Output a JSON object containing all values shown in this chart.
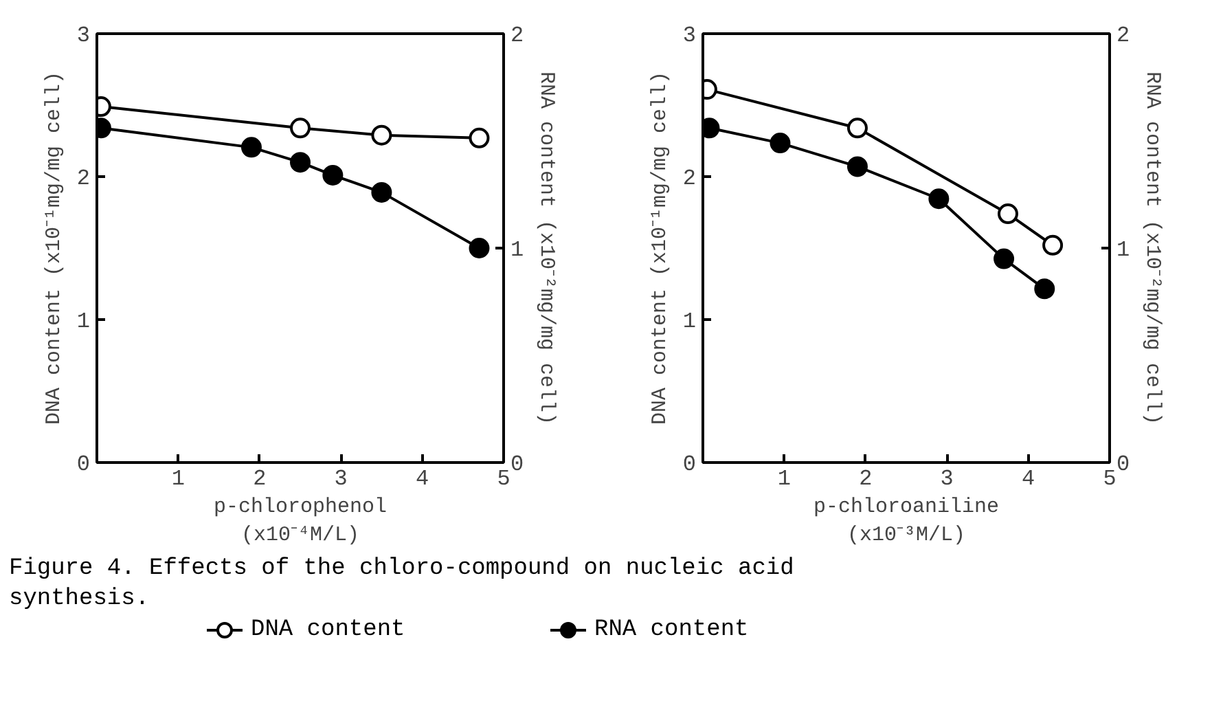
{
  "chart_data": [
    {
      "type": "line",
      "xlabel": "p-chlorophenol\n(x10⁻⁴M/L)",
      "ylabel": "DNA content (x10⁻¹mg/mg cell)",
      "y2label": "RNA content (x10⁻²mg/mg cell)",
      "xlim": [
        0,
        5
      ],
      "xticks": [
        1,
        2,
        3,
        4,
        5
      ],
      "ylim": [
        0,
        3
      ],
      "yticks": [
        0,
        1,
        2,
        3
      ],
      "y2lim": [
        0,
        2
      ],
      "y2ticks": [
        0,
        1,
        2
      ],
      "grid": false,
      "legend": "bottom",
      "marker": "circle",
      "line_style": "solid",
      "annotations": [
        "Figure 4.  Effects of the chloro-compound on nucleic acid\n            synthesis."
      ],
      "series": [
        {
          "name": "DNA content",
          "color": "#000000",
          "x": [
            0.05,
            2.5,
            3.5,
            4.7
          ],
          "values": [
            2.49,
            2.34,
            2.29,
            2.27
          ]
        },
        {
          "name": "RNA content",
          "color": "#000000",
          "axis": "y2",
          "x": [
            0.05,
            1.9,
            2.5,
            2.9,
            3.5,
            4.7
          ],
          "values": [
            1.56,
            1.47,
            1.4,
            1.34,
            1.26,
            1.0
          ]
        }
      ]
    },
    {
      "type": "line",
      "xlabel": "p-chloroaniline\n(x10⁻³M/L)",
      "ylabel": "DNA content (x10⁻¹mg/mg cell)",
      "y2label": "RNA content (x10⁻²mg/mg cell)",
      "xlim": [
        0,
        5
      ],
      "xticks": [
        1,
        2,
        3,
        4,
        5
      ],
      "ylim": [
        0,
        3
      ],
      "yticks": [
        0,
        1,
        2,
        3
      ],
      "y2lim": [
        0,
        2
      ],
      "y2ticks": [
        0,
        1,
        2
      ],
      "grid": false,
      "marker": "circle",
      "line_style": "solid",
      "series": [
        {
          "color": "#000000",
          "x": [
            0.05,
            1.9,
            3.75,
            4.3
          ],
          "values": [
            2.61,
            2.34,
            1.74,
            1.52
          ]
        },
        {
          "color": "#000000",
          "axis": "y2",
          "x": [
            0.08,
            0.95,
            1.9,
            2.9,
            3.7,
            4.2
          ],
          "values": [
            1.56,
            1.49,
            1.38,
            1.23,
            0.95,
            0.81
          ]
        }
      ]
    }
  ]
}
